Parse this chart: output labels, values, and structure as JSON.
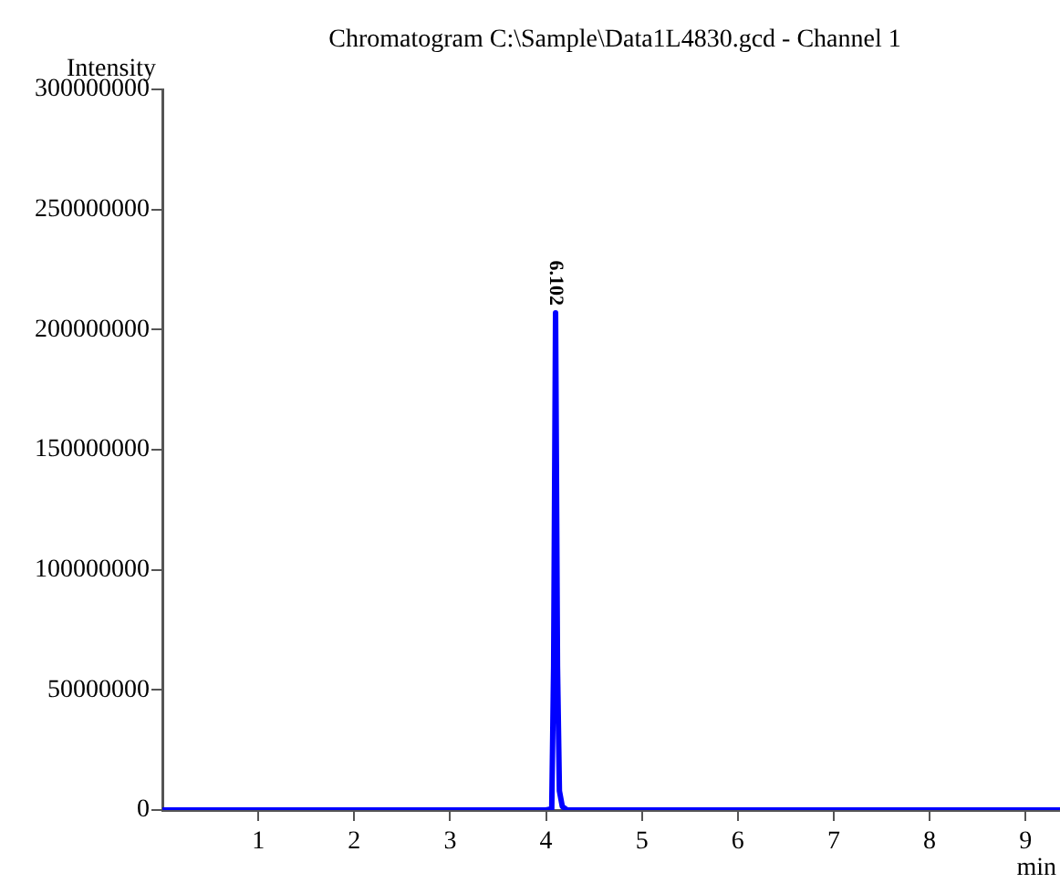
{
  "chart_data": {
    "type": "line",
    "title": "Chromatogram C:\\Sample\\Data1L4830.gcd - Channel 1",
    "xlabel": "min",
    "ylabel": "Intensity",
    "series": [
      {
        "color": "#0000ff",
        "x": [
          0,
          1,
          2,
          3,
          4,
          4.06,
          4.08,
          4.1,
          4.12,
          4.14,
          4.17,
          4.22,
          5,
          6,
          7,
          8,
          9,
          9.36
        ],
        "values": [
          0,
          0,
          0,
          0,
          0,
          500000,
          60000000,
          207000000,
          60000000,
          8000000,
          1500000,
          0,
          0,
          0,
          0,
          0,
          0,
          0
        ]
      }
    ],
    "xlim": [
      0,
      9.36
    ],
    "xticks": [
      1,
      2,
      3,
      4,
      5,
      6,
      7,
      8,
      9
    ],
    "ylim": [
      0,
      300000000
    ],
    "yticks": [
      0,
      50000000,
      100000000,
      150000000,
      200000000,
      250000000,
      300000000
    ],
    "annotations": [
      {
        "text": "6.102",
        "x": 4.1,
        "y": 207000000
      }
    ],
    "grid": false,
    "legend": false,
    "marker": "none",
    "line_style": "solid"
  }
}
